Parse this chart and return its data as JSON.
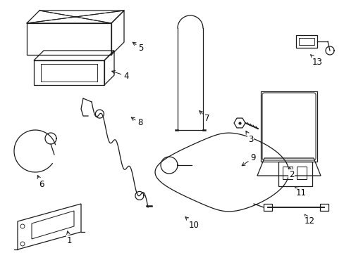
{
  "background_color": "#ffffff",
  "line_color": "#1a1a1a",
  "label_color": "#000000",
  "figsize": [
    4.89,
    3.6
  ],
  "dpi": 100,
  "lw": 0.9
}
